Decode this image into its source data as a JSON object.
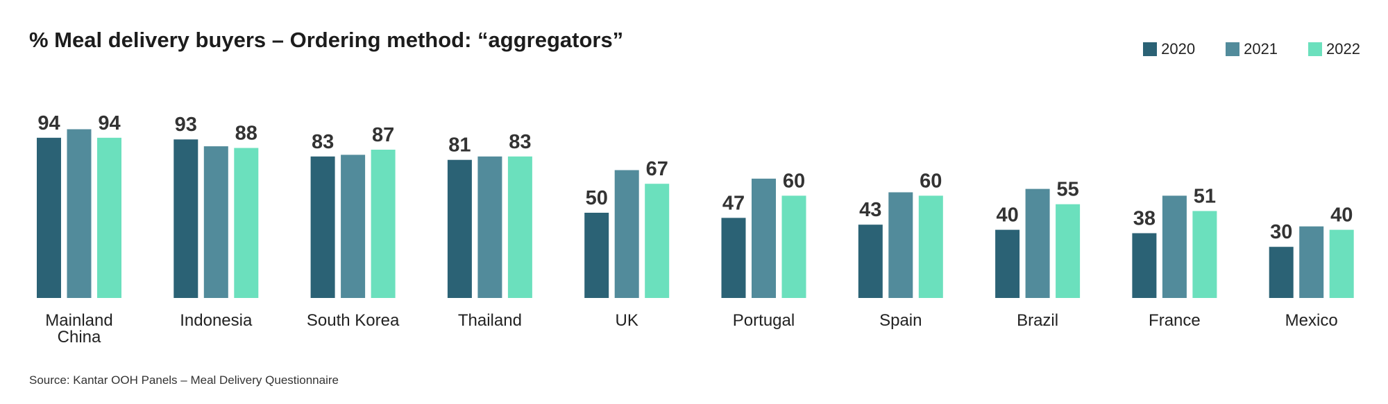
{
  "chart_data": {
    "type": "bar",
    "title": "% Meal delivery buyers – Ordering method: “aggregators”",
    "categories": [
      "Mainland China",
      "Indonesia",
      "South Korea",
      "Thailand",
      "UK",
      "Portugal",
      "Spain",
      "Brazil",
      "France",
      "Mexico"
    ],
    "category_label_lines": [
      [
        "Mainland",
        "China"
      ],
      [
        "Indonesia"
      ],
      [
        "South Korea"
      ],
      [
        "Thailand"
      ],
      [
        "UK"
      ],
      [
        "Portugal"
      ],
      [
        "Spain"
      ],
      [
        "Brazil"
      ],
      [
        "France"
      ],
      [
        "Mexico"
      ]
    ],
    "series": [
      {
        "name": "2020",
        "color": "#2b6275",
        "values": [
          94,
          93,
          83,
          81,
          50,
          47,
          43,
          40,
          38,
          30
        ],
        "labeled": true
      },
      {
        "name": "2021",
        "color": "#528b9b",
        "values": [
          99,
          89,
          84,
          83,
          75,
          70,
          62,
          64,
          60,
          42
        ],
        "labeled": false
      },
      {
        "name": "2022",
        "color": "#6be0bd",
        "values": [
          94,
          88,
          87,
          83,
          67,
          60,
          60,
          55,
          51,
          40
        ],
        "labeled": true
      }
    ],
    "ylim": [
      0,
      100
    ],
    "xlabel": "",
    "ylabel": "",
    "legend_position": "top-right",
    "grid": false
  },
  "source": "Source: Kantar OOH Panels – Meal Delivery Questionnaire"
}
